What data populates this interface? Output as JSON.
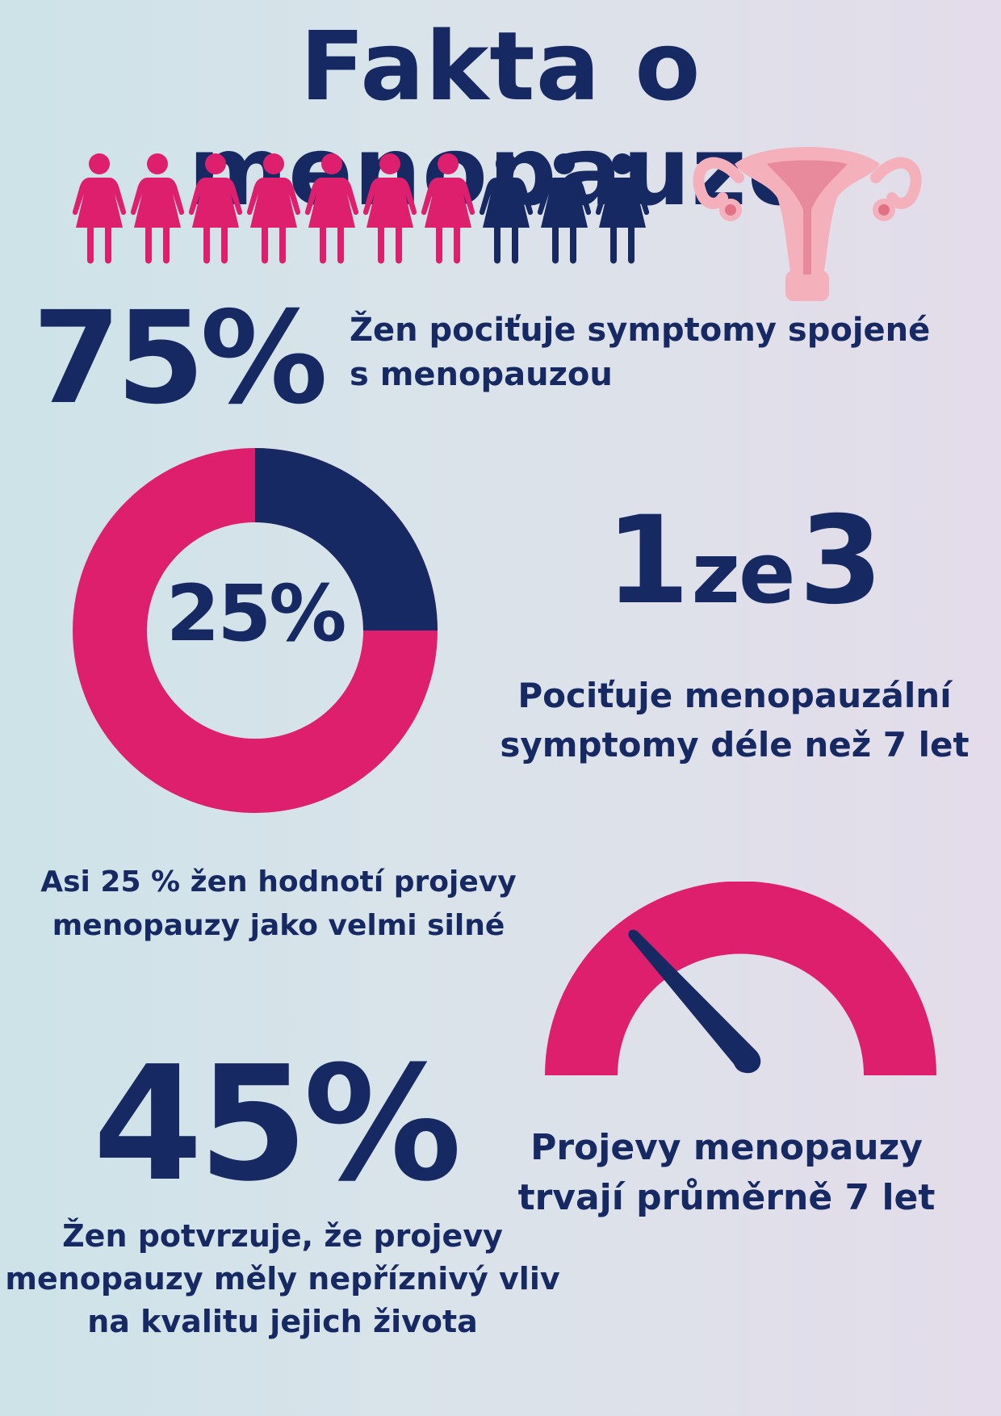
{
  "title": "Fakta o menopauze",
  "colors": {
    "navy": "#172963",
    "pink": "#de1f6e",
    "uterus_pink": "#f4b1bb"
  },
  "people_icons": {
    "total": 10,
    "highlighted": 7,
    "icon": "woman-figure-icon"
  },
  "illustration": {
    "icon": "uterus-icon"
  },
  "stat_75": {
    "value": "75%",
    "text": "Žen pociťuje symptomy spojené s menopauzou"
  },
  "stat_25": {
    "value": "25%",
    "fraction": 0.25,
    "text": "Asi 25 % žen hodnotí projevy menopauzy jako velmi silné"
  },
  "stat_1ze3": {
    "num1": "1",
    "word": "ze",
    "num2": "3",
    "text": "Pociťuje menopauzální symptomy déle než 7 let"
  },
  "stat_45": {
    "value": "45%",
    "text": "Žen potvrzuje, že projevy menopauzy měly nepříznivý vliv na kvalitu jejich života"
  },
  "gauge": {
    "icon": "gauge-icon",
    "text": "Projevy menopauzy trvají průměrně 7 let"
  }
}
